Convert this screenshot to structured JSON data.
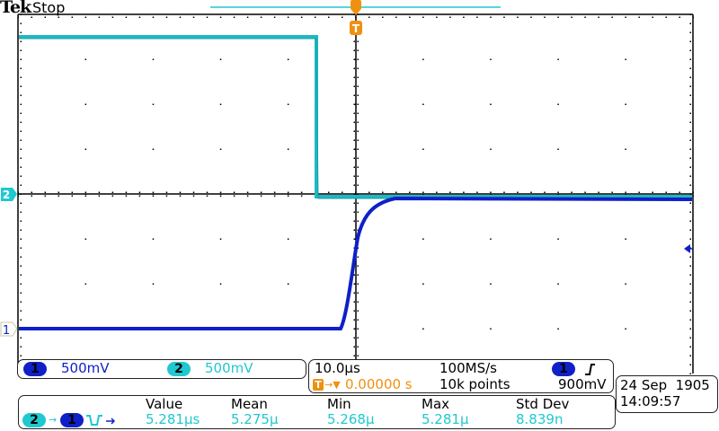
{
  "header": {
    "brand": "Tek",
    "run_state": "Stop"
  },
  "colors": {
    "ch1": "#1020c8",
    "ch2": "#20c8d0",
    "trigger": "#f09010",
    "grid": "#000000"
  },
  "markers": {
    "ch1_label": "1",
    "ch2_label": "2",
    "trigger_label": "T",
    "trigger_level_icon": "left-arrow"
  },
  "channels": [
    {
      "id": "1",
      "scale": "500mV"
    },
    {
      "id": "2",
      "scale": "500mV"
    }
  ],
  "timebase": {
    "scale": "10.0µs",
    "sample_rate": "100MS/s",
    "trigger_position": "0.00000 s",
    "record_length": "10k points",
    "trigger_channel": "1",
    "trigger_slope": "rising",
    "trigger_level": "900mV"
  },
  "datetime": {
    "date": "24 Sep  1905",
    "time": "14:09:57"
  },
  "measurement": {
    "source_a": "2",
    "source_b": "1",
    "type_icon": "delay-fall-to-rise",
    "headers": [
      "Value",
      "Mean",
      "Min",
      "Max",
      "Std Dev"
    ],
    "values": [
      "5.281µs",
      "5.275µ",
      "5.268µ",
      "5.281µ",
      "8.839n"
    ]
  }
}
